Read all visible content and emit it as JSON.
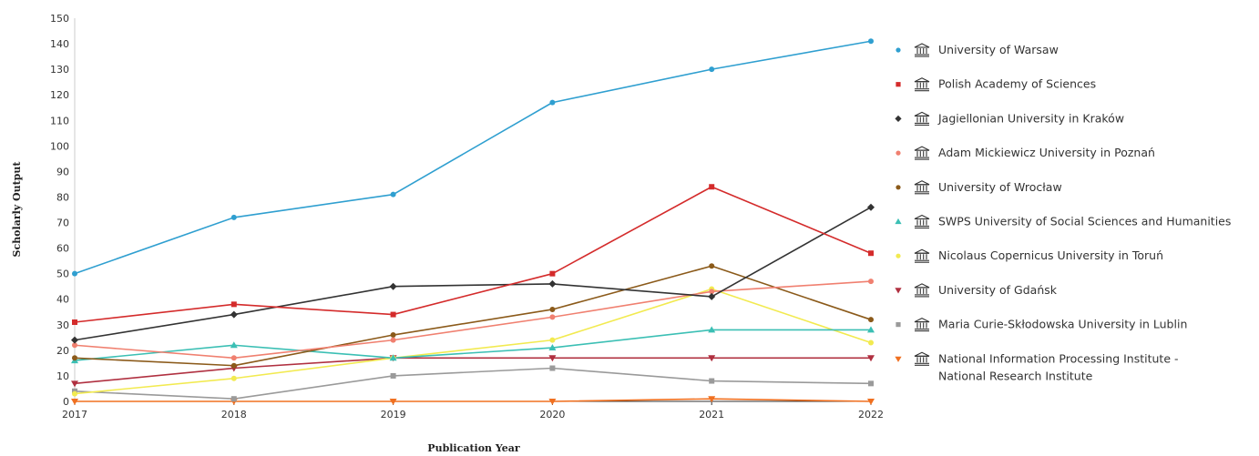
{
  "chart_data": {
    "type": "line",
    "title": "",
    "xlabel": "Publication Year",
    "ylabel": "Scholarly Output",
    "x": [
      "2017",
      "2018",
      "2019",
      "2020",
      "2021",
      "2022"
    ],
    "ylim": [
      0,
      150
    ],
    "yticks": [
      "0",
      "10",
      "20",
      "30",
      "40",
      "50",
      "60",
      "70",
      "80",
      "90",
      "100",
      "110",
      "120",
      "130",
      "140",
      "150"
    ],
    "grid": false,
    "legend": "right",
    "legend_icon": "institution-icon",
    "series": [
      {
        "name": "University of Warsaw",
        "color": "#2f9fd0",
        "marker": "circle",
        "values": [
          50,
          72,
          81,
          117,
          130,
          141
        ]
      },
      {
        "name": "Polish Academy of Sciences",
        "color": "#d42b2b",
        "marker": "square",
        "values": [
          31,
          38,
          34,
          50,
          84,
          58
        ]
      },
      {
        "name": "Jagiellonian University in Kraków",
        "color": "#333333",
        "marker": "diamond",
        "values": [
          24,
          34,
          45,
          46,
          41,
          76
        ]
      },
      {
        "name": "Adam Mickiewicz University in Poznań",
        "color": "#f08070",
        "marker": "circle",
        "values": [
          22,
          17,
          24,
          33,
          43,
          47
        ]
      },
      {
        "name": "University of Wrocław",
        "color": "#8b5a1a",
        "marker": "circle",
        "values": [
          17,
          14,
          26,
          36,
          53,
          32
        ]
      },
      {
        "name": "SWPS University of Social Sciences and Humanities",
        "color": "#3bbfb4",
        "marker": "triangle",
        "values": [
          16,
          22,
          17,
          21,
          28,
          28
        ]
      },
      {
        "name": "Nicolaus Copernicus University in Toruń",
        "color": "#f2ea50",
        "marker": "circle",
        "values": [
          3,
          9,
          17,
          24,
          44,
          23
        ]
      },
      {
        "name": "University of Gdańsk",
        "color": "#b03040",
        "marker": "triangle-down",
        "values": [
          7,
          13,
          17,
          17,
          17,
          17
        ]
      },
      {
        "name": "Maria Curie-Skłodowska University in Lublin",
        "color": "#9a9a9a",
        "marker": "square",
        "values": [
          4,
          1,
          10,
          13,
          8,
          7
        ]
      },
      {
        "name": "National Information Processing Institute - National Research Institute",
        "color": "#f07020",
        "marker": "triangle-down",
        "values": [
          0,
          0,
          0,
          0,
          1,
          0
        ]
      }
    ]
  }
}
